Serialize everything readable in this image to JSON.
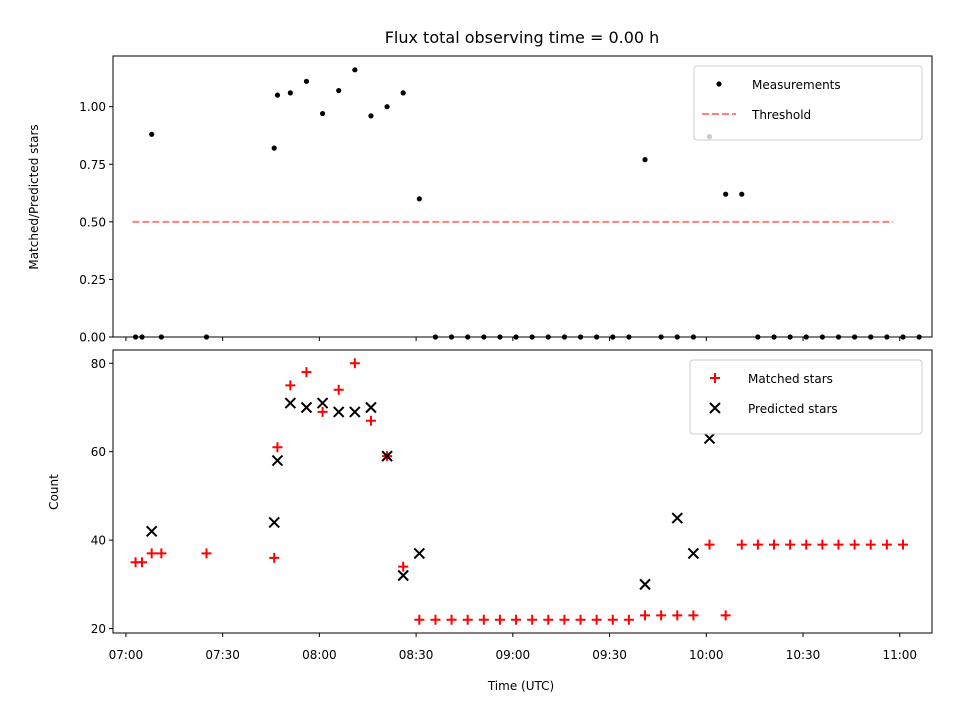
{
  "chart_data": [
    {
      "type": "scatter",
      "title": "Flux total observing time = 0.00 h",
      "ylabel": "Matched/Predicted stars",
      "xlabel": "",
      "xlim_min": [
        416,
        670
      ],
      "ylim": [
        0,
        1.22
      ],
      "yticks": [
        0.0,
        0.25,
        0.5,
        0.75,
        1.0
      ],
      "ytick_labels": [
        "0.00",
        "0.25",
        "0.50",
        "0.75",
        "1.00"
      ],
      "xticks_min": [
        420,
        450,
        480,
        510,
        540,
        570,
        600,
        630,
        660
      ],
      "legend": {
        "position": "top-right",
        "entries": [
          "Measurements",
          "Threshold"
        ]
      },
      "colors": {
        "measurements": "#000000",
        "threshold": "#ff7f7f"
      },
      "series": [
        {
          "name": "Measurements",
          "marker": "dot",
          "x_min": [
            423,
            425,
            428,
            431,
            445,
            466,
            467,
            471,
            476,
            481,
            486,
            491,
            496,
            501,
            506,
            511,
            516,
            521,
            526,
            531,
            536,
            541,
            546,
            551,
            556,
            561,
            566,
            571,
            576,
            581,
            586,
            591,
            596,
            601,
            606,
            611,
            616,
            621,
            626,
            631,
            636,
            641,
            646,
            651,
            656,
            661,
            666
          ],
          "y": [
            0,
            0,
            0.88,
            0,
            0,
            0.82,
            1.05,
            1.06,
            1.11,
            0.97,
            1.07,
            1.16,
            0.96,
            1.0,
            1.06,
            0.6,
            0,
            0,
            0,
            0,
            0,
            0,
            0,
            0,
            0,
            0,
            0,
            0,
            0,
            0.77,
            0,
            0,
            0,
            0.87,
            0.62,
            0.62,
            0,
            0,
            0,
            0,
            0,
            0,
            0,
            0,
            0,
            0,
            0
          ]
        },
        {
          "name": "Threshold",
          "marker": "dashed-line",
          "x_min": [
            422,
            658
          ],
          "y": [
            0.5,
            0.5
          ]
        }
      ]
    },
    {
      "type": "scatter",
      "title": "",
      "ylabel": "Count",
      "xlabel": "Time (UTC)",
      "xlim_min": [
        416,
        670
      ],
      "ylim": [
        19,
        83
      ],
      "yticks": [
        20,
        40,
        60,
        80
      ],
      "ytick_labels": [
        "20",
        "40",
        "60",
        "80"
      ],
      "xticks_min": [
        420,
        450,
        480,
        510,
        540,
        570,
        600,
        630,
        660
      ],
      "xtick_labels": [
        "07:00",
        "07:30",
        "08:00",
        "08:30",
        "09:00",
        "09:30",
        "10:00",
        "10:30",
        "11:00"
      ],
      "legend": {
        "position": "top-right",
        "entries": [
          "Matched stars",
          "Predicted stars"
        ]
      },
      "colors": {
        "matched": "#ff0000",
        "predicted": "#000000"
      },
      "series": [
        {
          "name": "Matched stars",
          "marker": "plus",
          "x_min": [
            423,
            425,
            428,
            431,
            445,
            466,
            467,
            471,
            476,
            481,
            486,
            491,
            496,
            501,
            506,
            511,
            516,
            521,
            526,
            531,
            536,
            541,
            546,
            551,
            556,
            561,
            566,
            571,
            576,
            581,
            586,
            591,
            596,
            601,
            606,
            611,
            616,
            621,
            626,
            631,
            636,
            641,
            646,
            651,
            656,
            661
          ],
          "y": [
            35,
            35,
            37,
            37,
            37,
            36,
            61,
            75,
            78,
            69,
            74,
            80,
            67,
            59,
            34,
            22,
            22,
            22,
            22,
            22,
            22,
            22,
            22,
            22,
            22,
            22,
            22,
            22,
            22,
            23,
            23,
            23,
            23,
            39,
            23,
            39,
            39,
            39,
            39,
            39,
            39,
            39,
            39,
            39,
            39,
            39
          ]
        },
        {
          "name": "Predicted stars",
          "marker": "x",
          "x_min": [
            428,
            466,
            467,
            471,
            476,
            481,
            486,
            491,
            496,
            501,
            506,
            511,
            581,
            591,
            596,
            601
          ],
          "y": [
            42,
            44,
            58,
            71,
            70,
            71,
            69,
            69,
            70,
            59,
            32,
            37,
            30,
            45,
            37,
            63
          ]
        }
      ]
    }
  ]
}
